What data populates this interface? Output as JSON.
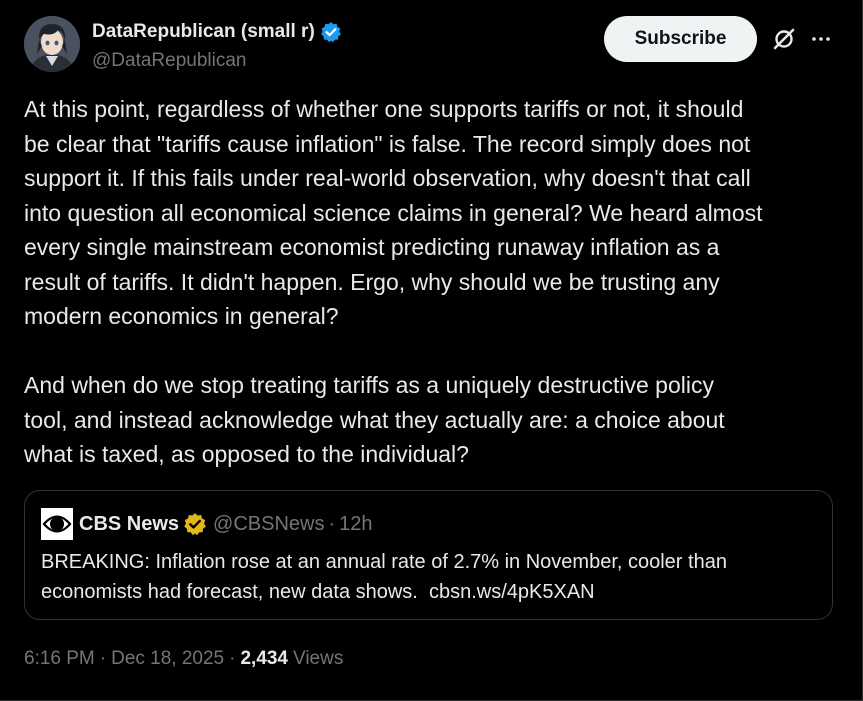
{
  "author": {
    "display_name": "DataRepublican (small r)",
    "handle": "@DataRepublican",
    "avatar_icon": "anime-avatar-icon",
    "verified_color": "#1d9bf0"
  },
  "actions": {
    "subscribe_label": "Subscribe",
    "grok_icon": "grok-slash-icon",
    "more_icon": "more-dots-icon"
  },
  "tweet": {
    "text": "At this point, regardless of whether one supports tariffs or not, it should\nbe clear that \"tariffs cause inflation\" is false. The record simply does not\nsupport it. If this fails under real-world observation, why doesn't that call\ninto question all economical science claims in general? We heard almost\nevery single mainstream economist predicting runaway inflation as a\nresult of tariffs. It didn't happen. Ergo, why should we be trusting any\nmodern economics in general?\n\nAnd when do we stop treating tariffs as a uniquely destructive policy\ntool, and instead acknowledge what they actually are: a choice about\nwhat is taxed, as opposed to the individual?"
  },
  "quote": {
    "name": "CBS News",
    "handle": "@CBSNews",
    "separator": "·",
    "time": "12h",
    "logo_icon": "cbs-eye-logo-icon",
    "badge_color": "#e2b719",
    "text": "BREAKING: Inflation rose at an annual rate of 2.7% in November, cooler than\neconomists had forecast, new data shows.  cbsn.ws/4pK5XAN"
  },
  "meta": {
    "time": "6:16 PM",
    "dot": "·",
    "date": "Dec 18, 2025",
    "views_count": "2,434",
    "views_label": "Views"
  }
}
